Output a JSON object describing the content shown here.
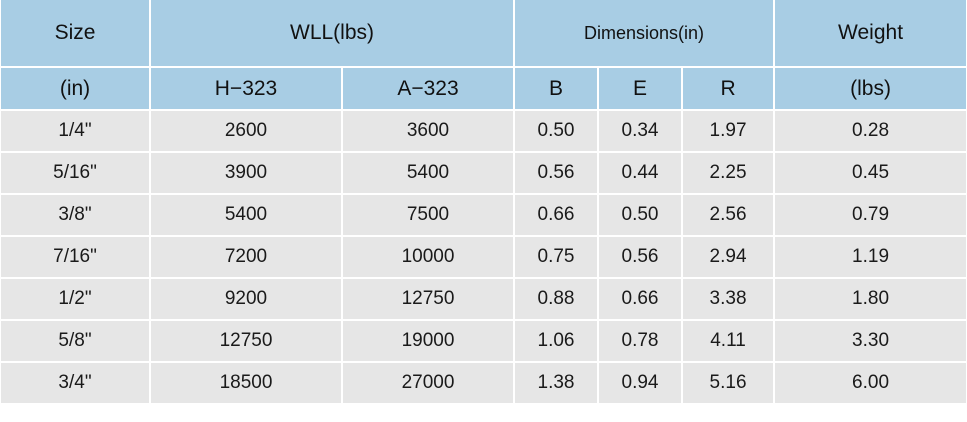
{
  "table": {
    "header_top": {
      "size": "Size",
      "wll": "WLL(lbs)",
      "dimensions": "Dimensions(in)",
      "weight": "Weight"
    },
    "header_sub": {
      "size_unit": "(in)",
      "h323": "H−323",
      "a323": "A−323",
      "b": "B",
      "e": "E",
      "r": "R",
      "weight_unit": "(lbs)"
    },
    "rows": [
      {
        "size": "1/4\"",
        "h323": "2600",
        "a323": "3600",
        "b": "0.50",
        "e": "0.34",
        "r": "1.97",
        "weight": "0.28"
      },
      {
        "size": "5/16\"",
        "h323": "3900",
        "a323": "5400",
        "b": "0.56",
        "e": "0.44",
        "r": "2.25",
        "weight": "0.45"
      },
      {
        "size": "3/8\"",
        "h323": "5400",
        "a323": "7500",
        "b": "0.66",
        "e": "0.50",
        "r": "2.56",
        "weight": "0.79"
      },
      {
        "size": "7/16\"",
        "h323": "7200",
        "a323": "10000",
        "b": "0.75",
        "e": "0.56",
        "r": "2.94",
        "weight": "1.19"
      },
      {
        "size": "1/2\"",
        "h323": "9200",
        "a323": "12750",
        "b": "0.88",
        "e": "0.66",
        "r": "3.38",
        "weight": "1.80"
      },
      {
        "size": "5/8\"",
        "h323": "12750",
        "a323": "19000",
        "b": "1.06",
        "e": "0.78",
        "r": "4.11",
        "weight": "3.30"
      },
      {
        "size": "3/4\"",
        "h323": "18500",
        "a323": "27000",
        "b": "1.38",
        "e": "0.94",
        "r": "5.16",
        "weight": "6.00"
      }
    ]
  },
  "colors": {
    "header_bg": "#a8cde4",
    "row_bg": "#e6e6e6",
    "divider": "#ffffff"
  }
}
